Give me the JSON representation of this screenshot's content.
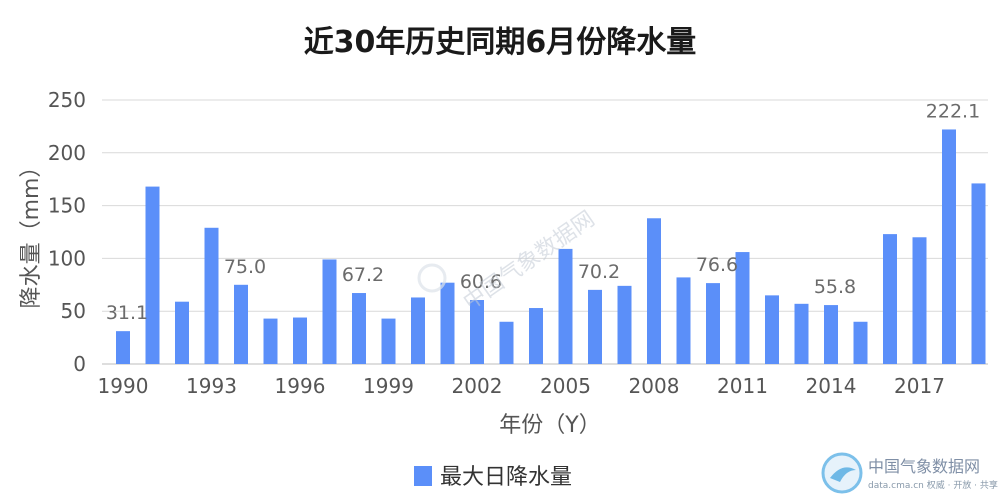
{
  "chart_data": {
    "type": "bar",
    "title": "近30年历史同期6月份降水量",
    "xlabel": "年份（Y）",
    "ylabel": "降水量（mm）",
    "ylim": [
      0,
      250
    ],
    "yticks": [
      0,
      50,
      100,
      150,
      200,
      250
    ],
    "xtick_labels": [
      "1990",
      "1993",
      "1996",
      "1999",
      "2002",
      "2005",
      "2008",
      "2011",
      "2014",
      "2017"
    ],
    "categories": [
      "1990",
      "1991",
      "1992",
      "1993",
      "1994",
      "1995",
      "1996",
      "1997",
      "1998",
      "1999",
      "2000",
      "2001",
      "2002",
      "2003",
      "2004",
      "2005",
      "2006",
      "2007",
      "2008",
      "2009",
      "2010",
      "2011",
      "2012",
      "2013",
      "2014",
      "2015",
      "2016",
      "2017",
      "2018",
      "2019"
    ],
    "series": [
      {
        "name": "最大日降水量",
        "color": "#5b8ff9",
        "values": [
          31.1,
          168,
          59,
          129,
          75.0,
          43,
          44,
          99,
          67.2,
          43,
          63,
          77,
          60.6,
          40,
          53,
          109,
          70.2,
          74,
          138,
          82,
          76.6,
          106,
          65,
          57,
          55.8,
          40,
          123,
          120,
          222.1,
          171
        ]
      }
    ],
    "data_labels": [
      {
        "index": 0,
        "text": "31.1"
      },
      {
        "index": 4,
        "text": "75.0"
      },
      {
        "index": 8,
        "text": "67.2"
      },
      {
        "index": 12,
        "text": "60.6"
      },
      {
        "index": 16,
        "text": "70.2"
      },
      {
        "index": 20,
        "text": "76.6"
      },
      {
        "index": 24,
        "text": "55.8"
      },
      {
        "index": 28,
        "text": "222.1"
      }
    ],
    "grid": true,
    "legend_position": "bottom"
  },
  "watermark": {
    "brand_cn": "中国气象数据网",
    "brand_url": "data.cma.cn 权威 · 开放 · 共享",
    "center_text": "中国气象数据网"
  }
}
